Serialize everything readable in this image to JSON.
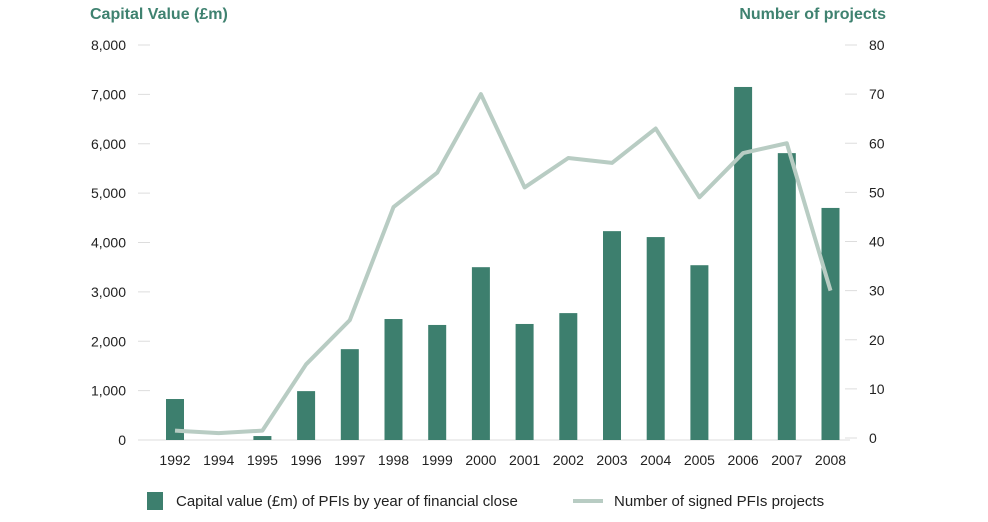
{
  "chart_data": {
    "type": "bar+line",
    "categories": [
      "1992",
      "1994",
      "1995",
      "1996",
      "1997",
      "1998",
      "1999",
      "2000",
      "2001",
      "2002",
      "2003",
      "2004",
      "2005",
      "2006",
      "2007",
      "2008"
    ],
    "series": [
      {
        "name": "Capital value (£m) of PFIs by year of financial close",
        "type": "bar",
        "axis": "left",
        "color": "#3d7f6e",
        "values": [
          830,
          0,
          80,
          990,
          1840,
          2450,
          2330,
          3500,
          2350,
          2570,
          4230,
          4110,
          3540,
          7150,
          5810,
          4700
        ]
      },
      {
        "name": "Number of signed PFIs projects",
        "type": "line",
        "axis": "right",
        "color": "#b8ccc3",
        "values": [
          1.5,
          1,
          1.5,
          15,
          24,
          47,
          54,
          70,
          51,
          57,
          56,
          63,
          49,
          58,
          60,
          30
        ]
      }
    ],
    "left_axis": {
      "title": "Capital Value (£m)",
      "range": [
        0,
        8000
      ],
      "ticks": [
        "0",
        "1,000",
        "2,000",
        "3,000",
        "4,000",
        "5,000",
        "6,000",
        "7,000",
        "8,000"
      ]
    },
    "right_axis": {
      "title": "Number of projects",
      "range": [
        0,
        80
      ],
      "ticks": [
        "0",
        "10",
        "20",
        "30",
        "40",
        "50",
        "60",
        "70",
        "80"
      ]
    },
    "legend_placement": "bottom"
  }
}
